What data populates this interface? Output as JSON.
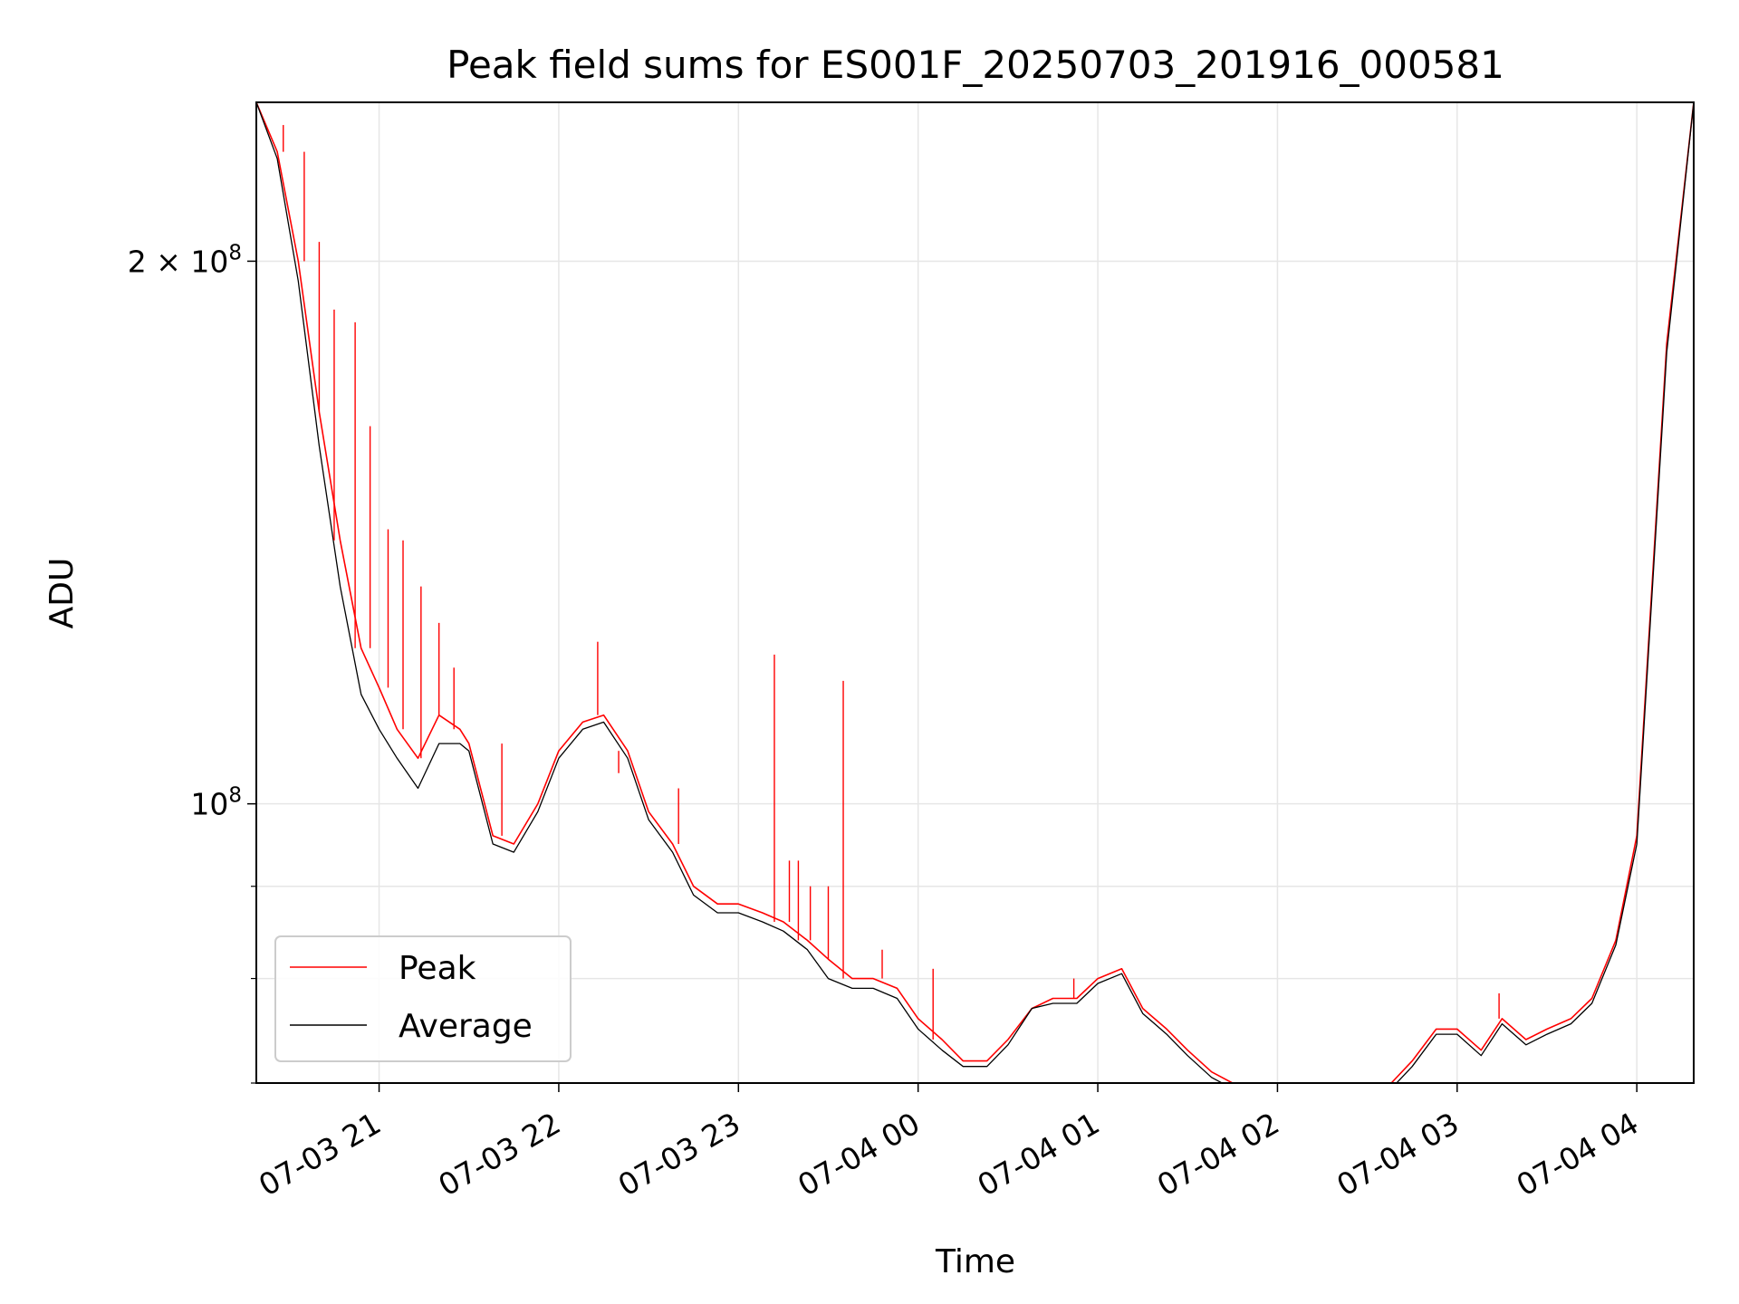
{
  "chart_data": {
    "type": "line",
    "title": "Peak field sums for ES001F_20250703_201916_000581",
    "xlabel": "Time",
    "ylabel": "ADU",
    "yscale": "log",
    "xlim": [
      "2025-07-03 20:19",
      "2025-07-04 04:19"
    ],
    "ylim": [
      70000000,
      245000000
    ],
    "grid": true,
    "legend_position": "lower-left",
    "x_ticks": [
      {
        "value": "2025-07-03 21:00",
        "label": "07-03 21"
      },
      {
        "value": "2025-07-03 22:00",
        "label": "07-03 22"
      },
      {
        "value": "2025-07-03 23:00",
        "label": "07-03 23"
      },
      {
        "value": "2025-07-04 00:00",
        "label": "07-04 00"
      },
      {
        "value": "2025-07-04 01:00",
        "label": "07-04 01"
      },
      {
        "value": "2025-07-04 02:00",
        "label": "07-04 02"
      },
      {
        "value": "2025-07-04 03:00",
        "label": "07-04 03"
      },
      {
        "value": "2025-07-04 04:00",
        "label": "07-04 04"
      }
    ],
    "y_major_ticks": [
      {
        "value": 100000000,
        "mantissa": "",
        "exponent": "8"
      },
      {
        "value": 200000000,
        "mantissa": "2 × ",
        "exponent": "8"
      }
    ],
    "y_minor_ticks": [
      70000000,
      80000000,
      90000000
    ],
    "series": [
      {
        "name": "Peak",
        "color": "#ff0000",
        "x": [
          "2025-07-03 20:19",
          "2025-07-03 20:26",
          "2025-07-03 20:33",
          "2025-07-03 20:40",
          "2025-07-03 20:47",
          "2025-07-03 20:54",
          "2025-07-03 21:00",
          "2025-07-03 21:06",
          "2025-07-03 21:13",
          "2025-07-03 21:20",
          "2025-07-03 21:27",
          "2025-07-03 21:30",
          "2025-07-03 21:38",
          "2025-07-03 21:45",
          "2025-07-03 21:53",
          "2025-07-03 22:00",
          "2025-07-03 22:08",
          "2025-07-03 22:15",
          "2025-07-03 22:23",
          "2025-07-03 22:30",
          "2025-07-03 22:38",
          "2025-07-03 22:45",
          "2025-07-03 22:53",
          "2025-07-03 23:00",
          "2025-07-03 23:08",
          "2025-07-03 23:15",
          "2025-07-03 23:23",
          "2025-07-03 23:30",
          "2025-07-03 23:38",
          "2025-07-03 23:45",
          "2025-07-03 23:53",
          "2025-07-04 00:00",
          "2025-07-04 00:08",
          "2025-07-04 00:15",
          "2025-07-04 00:23",
          "2025-07-04 00:30",
          "2025-07-04 00:38",
          "2025-07-04 00:45",
          "2025-07-04 00:53",
          "2025-07-04 01:00",
          "2025-07-04 01:08",
          "2025-07-04 01:15",
          "2025-07-04 01:23",
          "2025-07-04 01:30",
          "2025-07-04 01:38",
          "2025-07-04 01:45",
          "2025-07-04 01:53",
          "2025-07-04 02:00",
          "2025-07-04 02:08",
          "2025-07-04 02:15",
          "2025-07-04 02:23",
          "2025-07-04 02:30",
          "2025-07-04 02:38",
          "2025-07-04 02:45",
          "2025-07-04 02:53",
          "2025-07-04 03:00",
          "2025-07-04 03:08",
          "2025-07-04 03:15",
          "2025-07-04 03:23",
          "2025-07-04 03:30",
          "2025-07-04 03:38",
          "2025-07-04 03:45",
          "2025-07-04 03:53",
          "2025-07-04 04:00",
          "2025-07-04 04:10",
          "2025-07-04 04:19"
        ],
        "y": [
          245000000,
          230000000,
          200000000,
          165000000,
          140000000,
          122000000,
          116000000,
          110000000,
          106000000,
          112000000,
          110000000,
          108000000,
          96000000,
          95000000,
          100000000,
          107000000,
          111000000,
          112000000,
          107000000,
          99000000,
          95000000,
          90000000,
          88000000,
          88000000,
          87000000,
          86000000,
          84000000,
          82000000,
          80000000,
          80000000,
          79000000,
          76000000,
          74000000,
          72000000,
          72000000,
          74000000,
          77000000,
          78000000,
          78000000,
          80000000,
          81000000,
          77000000,
          75000000,
          73000000,
          71000000,
          70000000,
          69500000,
          69500000,
          69000000,
          69000000,
          69000000,
          69000000,
          70000000,
          72000000,
          75000000,
          75000000,
          73000000,
          76000000,
          74000000,
          75000000,
          76000000,
          78000000,
          84000000,
          96000000,
          180000000,
          245000000
        ],
        "spikes": [
          {
            "x": "2025-07-03 20:28",
            "y": 238000000
          },
          {
            "x": "2025-07-03 20:35",
            "y": 230000000
          },
          {
            "x": "2025-07-03 20:40",
            "y": 205000000
          },
          {
            "x": "2025-07-03 20:45",
            "y": 188000000
          },
          {
            "x": "2025-07-03 20:52",
            "y": 185000000
          },
          {
            "x": "2025-07-03 20:57",
            "y": 162000000
          },
          {
            "x": "2025-07-03 21:03",
            "y": 142000000
          },
          {
            "x": "2025-07-03 21:08",
            "y": 140000000
          },
          {
            "x": "2025-07-03 21:14",
            "y": 132000000
          },
          {
            "x": "2025-07-03 21:20",
            "y": 126000000
          },
          {
            "x": "2025-07-03 21:25",
            "y": 119000000
          },
          {
            "x": "2025-07-03 21:41",
            "y": 108000000
          },
          {
            "x": "2025-07-03 22:13",
            "y": 123000000
          },
          {
            "x": "2025-07-03 22:20",
            "y": 104000000
          },
          {
            "x": "2025-07-03 22:40",
            "y": 102000000
          },
          {
            "x": "2025-07-03 23:12",
            "y": 121000000
          },
          {
            "x": "2025-07-03 23:17",
            "y": 93000000
          },
          {
            "x": "2025-07-03 23:20",
            "y": 93000000
          },
          {
            "x": "2025-07-03 23:24",
            "y": 90000000
          },
          {
            "x": "2025-07-03 23:30",
            "y": 90000000
          },
          {
            "x": "2025-07-03 23:35",
            "y": 117000000
          },
          {
            "x": "2025-07-03 23:48",
            "y": 83000000
          },
          {
            "x": "2025-07-04 00:02",
            "y": 76000000
          },
          {
            "x": "2025-07-04 00:05",
            "y": 81000000
          },
          {
            "x": "2025-07-04 00:52",
            "y": 80000000
          },
          {
            "x": "2025-07-04 01:10",
            "y": 81000000
          },
          {
            "x": "2025-07-04 03:14",
            "y": 78500000
          }
        ]
      },
      {
        "name": "Average",
        "color": "#000000",
        "x": [
          "2025-07-03 20:19",
          "2025-07-03 20:26",
          "2025-07-03 20:33",
          "2025-07-03 20:40",
          "2025-07-03 20:47",
          "2025-07-03 20:54",
          "2025-07-03 21:00",
          "2025-07-03 21:06",
          "2025-07-03 21:13",
          "2025-07-03 21:20",
          "2025-07-03 21:27",
          "2025-07-03 21:30",
          "2025-07-03 21:38",
          "2025-07-03 21:45",
          "2025-07-03 21:53",
          "2025-07-03 22:00",
          "2025-07-03 22:08",
          "2025-07-03 22:15",
          "2025-07-03 22:23",
          "2025-07-03 22:30",
          "2025-07-03 22:38",
          "2025-07-03 22:45",
          "2025-07-03 22:53",
          "2025-07-03 23:00",
          "2025-07-03 23:08",
          "2025-07-03 23:15",
          "2025-07-03 23:23",
          "2025-07-03 23:30",
          "2025-07-03 23:38",
          "2025-07-03 23:45",
          "2025-07-03 23:53",
          "2025-07-04 00:00",
          "2025-07-04 00:08",
          "2025-07-04 00:15",
          "2025-07-04 00:23",
          "2025-07-04 00:30",
          "2025-07-04 00:38",
          "2025-07-04 00:45",
          "2025-07-04 00:53",
          "2025-07-04 01:00",
          "2025-07-04 01:08",
          "2025-07-04 01:15",
          "2025-07-04 01:23",
          "2025-07-04 01:30",
          "2025-07-04 01:38",
          "2025-07-04 01:45",
          "2025-07-04 01:53",
          "2025-07-04 02:00",
          "2025-07-04 02:08",
          "2025-07-04 02:15",
          "2025-07-04 02:23",
          "2025-07-04 02:30",
          "2025-07-04 02:38",
          "2025-07-04 02:45",
          "2025-07-04 02:53",
          "2025-07-04 03:00",
          "2025-07-04 03:08",
          "2025-07-04 03:15",
          "2025-07-04 03:23",
          "2025-07-04 03:30",
          "2025-07-04 03:38",
          "2025-07-04 03:45",
          "2025-07-04 03:53",
          "2025-07-04 04:00",
          "2025-07-04 04:10",
          "2025-07-04 04:19"
        ],
        "y": [
          245000000,
          228000000,
          195000000,
          158000000,
          132000000,
          115000000,
          110000000,
          106000000,
          102000000,
          108000000,
          108000000,
          107000000,
          95000000,
          94000000,
          99000000,
          106000000,
          110000000,
          111000000,
          106000000,
          98000000,
          94000000,
          89000000,
          87000000,
          87000000,
          86000000,
          85000000,
          83000000,
          80000000,
          79000000,
          79000000,
          78000000,
          75000000,
          73000000,
          71500000,
          71500000,
          73500000,
          77000000,
          77500000,
          77500000,
          79500000,
          80500000,
          76500000,
          74500000,
          72500000,
          70500000,
          69500000,
          69000000,
          69000000,
          68700000,
          68700000,
          68700000,
          68700000,
          69500000,
          71500000,
          74500000,
          74500000,
          72500000,
          75500000,
          73500000,
          74500000,
          75500000,
          77500000,
          83500000,
          95000000,
          178000000,
          245000000
        ]
      }
    ]
  }
}
